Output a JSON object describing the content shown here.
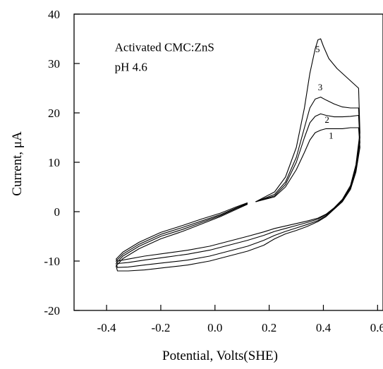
{
  "chart_data": {
    "type": "line",
    "title": "",
    "xlabel": "Potential, Volts(SHE)",
    "ylabel": "Current, μA",
    "xlim": [
      -0.52,
      0.62
    ],
    "ylim": [
      -20,
      40
    ],
    "xticks": [
      -0.4,
      -0.2,
      0.0,
      0.2,
      0.4,
      0.6
    ],
    "xtick_labels": [
      "-0.4",
      "-0.2",
      "0.0",
      "0.2",
      "0.4",
      "0.6"
    ],
    "yticks": [
      -20,
      -10,
      0,
      10,
      20,
      30,
      40
    ],
    "ytick_labels": [
      "-20",
      "-10",
      "0",
      "10",
      "20",
      "30",
      "40"
    ],
    "grid": false,
    "legend": "none",
    "annotations": [
      {
        "text": "Activated CMC:ZnS",
        "x": -0.37,
        "y": 32.5
      },
      {
        "text": "pH 4.6",
        "x": -0.37,
        "y": 28.5
      }
    ],
    "series": [
      {
        "name": "1",
        "label_at": [
          0.42,
          14.8
        ],
        "x": [
          0.15,
          0.22,
          0.26,
          0.3,
          0.33,
          0.35,
          0.37,
          0.39,
          0.41,
          0.44,
          0.47,
          0.5,
          0.53,
          0.535,
          0.52,
          0.5,
          0.47,
          0.44,
          0.41,
          0.38,
          0.34,
          0.3,
          0.26,
          0.22,
          0.18,
          0.12,
          0.05,
          -0.02,
          -0.1,
          -0.18,
          -0.26,
          -0.32,
          -0.36,
          -0.365,
          -0.34,
          -0.28,
          -0.2,
          -0.12,
          -0.05,
          0.02,
          0.08,
          0.12
        ],
        "y": [
          2.0,
          3.0,
          5.0,
          8.5,
          12.0,
          14.5,
          16.0,
          16.5,
          16.8,
          16.8,
          16.8,
          17.0,
          17.0,
          13.0,
          8.0,
          4.5,
          2.0,
          0.5,
          -1.0,
          -2.0,
          -3.0,
          -3.8,
          -4.5,
          -5.5,
          -6.8,
          -8.0,
          -9.0,
          -10.0,
          -10.8,
          -11.3,
          -11.8,
          -12.0,
          -12.0,
          -11.0,
          -9.5,
          -7.5,
          -5.5,
          -4.0,
          -2.5,
          -1.0,
          0.5,
          1.5
        ]
      },
      {
        "name": "2",
        "label_at": [
          0.405,
          18.0
        ],
        "x": [
          0.15,
          0.22,
          0.26,
          0.3,
          0.33,
          0.35,
          0.37,
          0.39,
          0.41,
          0.44,
          0.47,
          0.5,
          0.53,
          0.535,
          0.52,
          0.5,
          0.47,
          0.44,
          0.41,
          0.38,
          0.34,
          0.3,
          0.26,
          0.22,
          0.18,
          0.12,
          0.05,
          -0.02,
          -0.1,
          -0.18,
          -0.26,
          -0.32,
          -0.36,
          -0.365,
          -0.34,
          -0.28,
          -0.2,
          -0.12,
          -0.05,
          0.02,
          0.08,
          0.12
        ],
        "y": [
          2.0,
          3.2,
          5.5,
          10.0,
          15.0,
          18.0,
          19.3,
          19.8,
          19.5,
          19.2,
          19.2,
          19.3,
          19.5,
          14.0,
          8.5,
          4.8,
          2.2,
          0.6,
          -0.8,
          -1.8,
          -2.6,
          -3.3,
          -4.0,
          -4.8,
          -5.8,
          -7.0,
          -8.0,
          -9.0,
          -9.8,
          -10.3,
          -10.8,
          -11.2,
          -11.3,
          -10.5,
          -9.0,
          -7.0,
          -5.0,
          -3.6,
          -2.2,
          -0.8,
          0.7,
          1.6
        ]
      },
      {
        "name": "3",
        "label_at": [
          0.38,
          24.6
        ],
        "x": [
          0.15,
          0.22,
          0.26,
          0.3,
          0.33,
          0.35,
          0.37,
          0.39,
          0.41,
          0.44,
          0.47,
          0.5,
          0.53,
          0.535,
          0.52,
          0.5,
          0.47,
          0.44,
          0.41,
          0.38,
          0.34,
          0.3,
          0.26,
          0.22,
          0.18,
          0.12,
          0.05,
          -0.02,
          -0.1,
          -0.18,
          -0.26,
          -0.32,
          -0.36,
          -0.365,
          -0.34,
          -0.28,
          -0.2,
          -0.12,
          -0.05,
          0.02,
          0.08,
          0.12
        ],
        "y": [
          2.0,
          3.5,
          6.0,
          11.0,
          17.0,
          21.0,
          22.8,
          23.2,
          22.6,
          21.8,
          21.2,
          21.0,
          21.0,
          15.0,
          9.0,
          5.0,
          2.3,
          0.7,
          -0.6,
          -1.5,
          -2.2,
          -2.8,
          -3.4,
          -4.0,
          -4.8,
          -5.8,
          -6.8,
          -7.8,
          -8.6,
          -9.2,
          -9.8,
          -10.3,
          -10.5,
          -10.0,
          -8.6,
          -6.6,
          -4.6,
          -3.2,
          -1.9,
          -0.6,
          0.8,
          1.7
        ]
      },
      {
        "name": "5",
        "label_at": [
          0.37,
          32.3
        ],
        "x": [
          0.15,
          0.22,
          0.26,
          0.3,
          0.33,
          0.35,
          0.37,
          0.38,
          0.39,
          0.4,
          0.42,
          0.45,
          0.48,
          0.51,
          0.53,
          0.535,
          0.52,
          0.5,
          0.47,
          0.44,
          0.41,
          0.38,
          0.34,
          0.3,
          0.26,
          0.22,
          0.18,
          0.12,
          0.05,
          -0.02,
          -0.1,
          -0.18,
          -0.26,
          -0.32,
          -0.36,
          -0.365,
          -0.34,
          -0.28,
          -0.2,
          -0.12,
          -0.05,
          0.02,
          0.08,
          0.12
        ],
        "y": [
          2.0,
          4.0,
          7.0,
          13.0,
          21.0,
          28.0,
          33.0,
          34.8,
          35.0,
          33.5,
          31.0,
          29.0,
          27.5,
          26.0,
          25.0,
          16.0,
          9.5,
          5.3,
          2.5,
          0.8,
          -0.5,
          -1.3,
          -1.9,
          -2.4,
          -2.9,
          -3.4,
          -4.1,
          -5.0,
          -6.0,
          -7.0,
          -7.8,
          -8.4,
          -9.0,
          -9.6,
          -10.0,
          -9.6,
          -8.2,
          -6.2,
          -4.2,
          -2.8,
          -1.5,
          -0.3,
          1.0,
          1.8
        ]
      }
    ]
  }
}
